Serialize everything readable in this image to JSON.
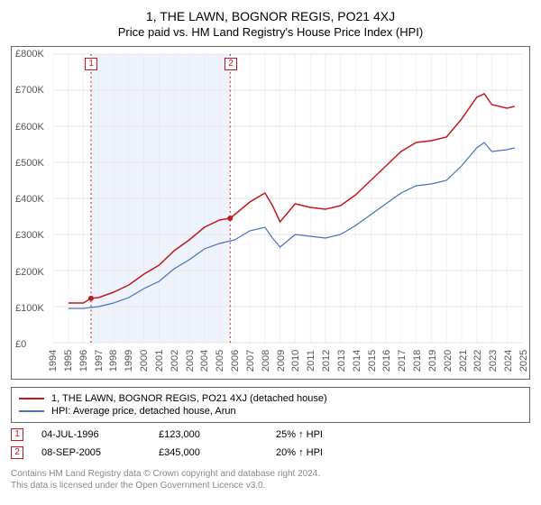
{
  "title": "1, THE LAWN, BOGNOR REGIS, PO21 4XJ",
  "subtitle": "Price paid vs. HM Land Registry's House Price Index (HPI)",
  "chart": {
    "type": "line",
    "background_color": "#ffffff",
    "grid_color": "#e5e5e5",
    "shaded_color": "#eef3fb",
    "marker_line_color": "#c41820",
    "marker_border_color": "#c41820",
    "marker_text_color": "#c41820",
    "ylim": [
      0,
      800000
    ],
    "ytick_step": 100000,
    "ytick_labels": [
      "£0",
      "£100K",
      "£200K",
      "£300K",
      "£400K",
      "£500K",
      "£600K",
      "£700K",
      "£800K"
    ],
    "xlim": [
      1994,
      2025
    ],
    "xtick_step": 1,
    "xtick_labels": [
      "1994",
      "1995",
      "1996",
      "1997",
      "1998",
      "1999",
      "2000",
      "2001",
      "2002",
      "2003",
      "2004",
      "2005",
      "2006",
      "2007",
      "2008",
      "2009",
      "2010",
      "2011",
      "2012",
      "2013",
      "2014",
      "2015",
      "2016",
      "2017",
      "2018",
      "2019",
      "2020",
      "2021",
      "2022",
      "2023",
      "2024",
      "2025"
    ],
    "markers": [
      {
        "label": "1",
        "x": 1996.5
      },
      {
        "label": "2",
        "x": 2005.7
      }
    ],
    "series": [
      {
        "name": "property",
        "label": "1, THE LAWN, BOGNOR REGIS, PO21 4XJ (detached house)",
        "color": "#c41820",
        "line_width": 1.5,
        "points": [
          [
            1995,
            110000
          ],
          [
            1996,
            110000
          ],
          [
            1996.5,
            123000
          ],
          [
            1997,
            125000
          ],
          [
            1998,
            140000
          ],
          [
            1999,
            160000
          ],
          [
            2000,
            190000
          ],
          [
            2001,
            215000
          ],
          [
            2002,
            255000
          ],
          [
            2003,
            285000
          ],
          [
            2004,
            320000
          ],
          [
            2005,
            340000
          ],
          [
            2005.7,
            345000
          ],
          [
            2006,
            355000
          ],
          [
            2007,
            390000
          ],
          [
            2008,
            415000
          ],
          [
            2008.5,
            380000
          ],
          [
            2009,
            335000
          ],
          [
            2010,
            385000
          ],
          [
            2011,
            375000
          ],
          [
            2012,
            370000
          ],
          [
            2013,
            380000
          ],
          [
            2014,
            410000
          ],
          [
            2015,
            450000
          ],
          [
            2016,
            490000
          ],
          [
            2017,
            530000
          ],
          [
            2018,
            555000
          ],
          [
            2019,
            560000
          ],
          [
            2020,
            570000
          ],
          [
            2021,
            620000
          ],
          [
            2022,
            680000
          ],
          [
            2022.5,
            690000
          ],
          [
            2023,
            660000
          ],
          [
            2024,
            650000
          ],
          [
            2024.5,
            655000
          ]
        ]
      },
      {
        "name": "hpi",
        "label": "HPI: Average price, detached house, Arun",
        "color": "#4472c4",
        "line_width": 1.2,
        "points": [
          [
            1995,
            95000
          ],
          [
            1996,
            95000
          ],
          [
            1997,
            100000
          ],
          [
            1998,
            110000
          ],
          [
            1999,
            125000
          ],
          [
            2000,
            150000
          ],
          [
            2001,
            170000
          ],
          [
            2002,
            205000
          ],
          [
            2003,
            230000
          ],
          [
            2004,
            260000
          ],
          [
            2005,
            275000
          ],
          [
            2006,
            285000
          ],
          [
            2007,
            310000
          ],
          [
            2008,
            320000
          ],
          [
            2008.5,
            290000
          ],
          [
            2009,
            265000
          ],
          [
            2010,
            300000
          ],
          [
            2011,
            295000
          ],
          [
            2012,
            290000
          ],
          [
            2013,
            300000
          ],
          [
            2014,
            325000
          ],
          [
            2015,
            355000
          ],
          [
            2016,
            385000
          ],
          [
            2017,
            415000
          ],
          [
            2018,
            435000
          ],
          [
            2019,
            440000
          ],
          [
            2020,
            450000
          ],
          [
            2021,
            490000
          ],
          [
            2022,
            540000
          ],
          [
            2022.5,
            555000
          ],
          [
            2023,
            530000
          ],
          [
            2024,
            535000
          ],
          [
            2024.5,
            540000
          ]
        ],
        "point_markers": [
          [
            1996.5,
            123000
          ],
          [
            2005.7,
            345000
          ]
        ]
      }
    ]
  },
  "legend": {
    "items": [
      {
        "color": "#c41820",
        "label": "1, THE LAWN, BOGNOR REGIS, PO21 4XJ (detached house)"
      },
      {
        "color": "#4472c4",
        "label": "HPI: Average price, detached house, Arun"
      }
    ]
  },
  "transactions": [
    {
      "marker": "1",
      "date": "04-JUL-1996",
      "price": "£123,000",
      "delta": "25% ↑ HPI"
    },
    {
      "marker": "2",
      "date": "08-SEP-2005",
      "price": "£345,000",
      "delta": "20% ↑ HPI"
    }
  ],
  "footer": {
    "line1": "Contains HM Land Registry data © Crown copyright and database right 2024.",
    "line2": "This data is licensed under the Open Government Licence v3.0."
  }
}
